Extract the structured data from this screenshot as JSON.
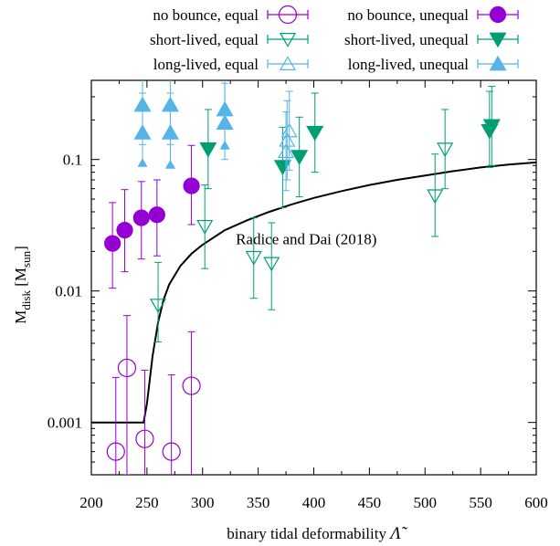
{
  "chart_data": {
    "type": "scatter",
    "xlabel": "binary tidal deformability",
    "xlabel_symbol": "Λ̃",
    "ylabel_main": "M",
    "ylabel_sub": "disk",
    "ylabel_unit_main": "M",
    "ylabel_unit_sub": "sun",
    "xlim": [
      200,
      600
    ],
    "ylim": [
      0.0004,
      0.4
    ],
    "yscale": "log",
    "x_ticks": [
      200,
      250,
      300,
      350,
      400,
      450,
      500,
      550,
      600
    ],
    "y_ticks": [
      {
        "value": 0.001,
        "label": "0.001"
      },
      {
        "value": 0.01,
        "label": "0.01"
      },
      {
        "value": 0.1,
        "label": "0.1"
      }
    ],
    "legend_position": "top",
    "annotations": [
      {
        "text": "Radice and Dai (2018)",
        "x": 375,
        "y": 0.025
      }
    ],
    "series": [
      {
        "name": "no bounce, equal",
        "key": "nb_eq",
        "color": "#9400d3",
        "marker": "circle-open",
        "points": [
          {
            "x": 222,
            "y": 0.0006,
            "lo": 0.0001,
            "hi": 0.0022
          },
          {
            "x": 232,
            "y": 0.0026,
            "lo": 0.0004,
            "hi": 0.0065
          },
          {
            "x": 248,
            "y": 0.00075,
            "lo": 0.0001,
            "hi": 0.0025
          },
          {
            "x": 272,
            "y": 0.0006,
            "lo": 0.0001,
            "hi": 0.0023
          },
          {
            "x": 290,
            "y": 0.0019,
            "lo": 0.0003,
            "hi": 0.0049
          }
        ]
      },
      {
        "name": "no bounce, unequal",
        "key": "nb_uneq",
        "color": "#9400d3",
        "marker": "circle-filled",
        "points": [
          {
            "x": 219,
            "y": 0.023,
            "lo": 0.0105,
            "hi": 0.047
          },
          {
            "x": 230,
            "y": 0.029,
            "lo": 0.014,
            "hi": 0.059
          },
          {
            "x": 245,
            "y": 0.036,
            "lo": 0.0175,
            "hi": 0.068
          },
          {
            "x": 259,
            "y": 0.038,
            "lo": 0.0185,
            "hi": 0.07
          },
          {
            "x": 290,
            "y": 0.063,
            "lo": 0.032,
            "hi": 0.128
          }
        ]
      },
      {
        "name": "short-lived, equal",
        "key": "sl_eq",
        "color": "#009e73",
        "marker": "triangle-down-open",
        "points": [
          {
            "x": 260,
            "y": 0.0078,
            "lo": 0.0041,
            "hi": 0.0165
          },
          {
            "x": 302,
            "y": 0.031,
            "lo": 0.0148,
            "hi": 0.064
          },
          {
            "x": 346,
            "y": 0.018,
            "lo": 0.0088,
            "hi": 0.036
          },
          {
            "x": 362,
            "y": 0.0162,
            "lo": 0.0072,
            "hi": 0.033
          },
          {
            "x": 509,
            "y": 0.053,
            "lo": 0.026,
            "hi": 0.11
          },
          {
            "x": 518,
            "y": 0.12,
            "lo": 0.06,
            "hi": 0.24
          }
        ]
      },
      {
        "name": "short-lived, unequal",
        "key": "sl_uneq",
        "color": "#009e73",
        "marker": "triangle-down-filled",
        "points": [
          {
            "x": 305,
            "y": 0.12,
            "lo": 0.06,
            "hi": 0.24
          },
          {
            "x": 372,
            "y": 0.088,
            "lo": 0.043,
            "hi": 0.176
          },
          {
            "x": 387,
            "y": 0.105,
            "lo": 0.052,
            "hi": 0.21
          },
          {
            "x": 401,
            "y": 0.16,
            "lo": 0.08,
            "hi": 0.32
          },
          {
            "x": 558,
            "y": 0.165,
            "lo": 0.087,
            "hi": 0.33
          },
          {
            "x": 560,
            "y": 0.18,
            "lo": 0.09,
            "hi": 0.36
          }
        ]
      },
      {
        "name": "long-lived, equal",
        "key": "ll_eq",
        "color": "#56b4e9",
        "marker": "triangle-up-open",
        "points": [
          {
            "x": 375,
            "y": 0.115,
            "lo": 0.058,
            "hi": 0.23
          },
          {
            "x": 376,
            "y": 0.14,
            "lo": 0.07,
            "hi": 0.28
          },
          {
            "x": 378,
            "y": 0.165,
            "lo": 0.083,
            "hi": 0.33
          }
        ]
      },
      {
        "name": "long-lived, unequal",
        "key": "ll_uneq",
        "color": "#56b4e9",
        "marker": "triangle-up-filled",
        "points": [
          {
            "x": 246,
            "y": 0.26,
            "lo": 0.13,
            "hi": 0.5
          },
          {
            "x": 246,
            "y": 0.16,
            "lo": 0.09,
            "hi": 0.32
          },
          {
            "x": 246,
            "y": 0.094,
            "lo": 0.094,
            "hi": 0.094
          },
          {
            "x": 271,
            "y": 0.26,
            "lo": 0.13,
            "hi": 0.5
          },
          {
            "x": 271,
            "y": 0.16,
            "lo": 0.09,
            "hi": 0.32
          },
          {
            "x": 271,
            "y": 0.091,
            "lo": 0.091,
            "hi": 0.091
          },
          {
            "x": 320,
            "y": 0.24,
            "lo": 0.12,
            "hi": 0.48
          },
          {
            "x": 320,
            "y": 0.19,
            "lo": 0.1,
            "hi": 0.38
          },
          {
            "x": 320,
            "y": 0.128,
            "lo": 0.128,
            "hi": 0.128
          }
        ]
      }
    ],
    "curve": {
      "name": "Radice and Dai (2018)",
      "color": "#000000",
      "points": [
        [
          200,
          0.001
        ],
        [
          210,
          0.001
        ],
        [
          220,
          0.001
        ],
        [
          230,
          0.001
        ],
        [
          240,
          0.001
        ],
        [
          247,
          0.001
        ],
        [
          250,
          0.0014
        ],
        [
          255,
          0.0032
        ],
        [
          260,
          0.0058
        ],
        [
          265,
          0.0086
        ],
        [
          270,
          0.0112
        ],
        [
          280,
          0.0155
        ],
        [
          290,
          0.0192
        ],
        [
          300,
          0.0225
        ],
        [
          320,
          0.029
        ],
        [
          340,
          0.0345
        ],
        [
          360,
          0.04
        ],
        [
          380,
          0.0455
        ],
        [
          400,
          0.051
        ],
        [
          425,
          0.0575
        ],
        [
          450,
          0.064
        ],
        [
          475,
          0.07
        ],
        [
          500,
          0.0755
        ],
        [
          525,
          0.0815
        ],
        [
          550,
          0.087
        ],
        [
          575,
          0.0915
        ],
        [
          600,
          0.095
        ]
      ]
    }
  }
}
